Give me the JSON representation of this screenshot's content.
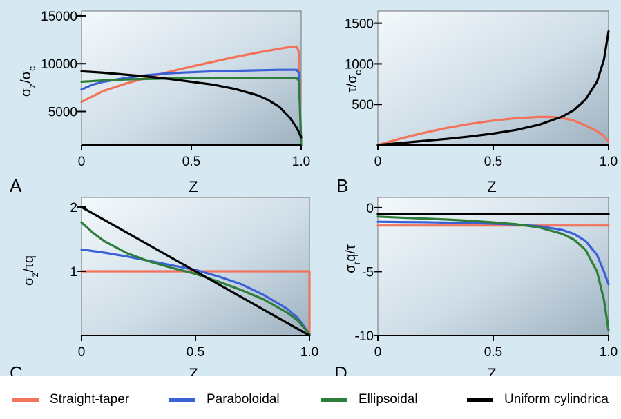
{
  "colors": {
    "straight_taper": "#f2735a",
    "paraboloidal": "#3a62d6",
    "ellipsoidal": "#2e7d3a",
    "uniform_cylindrical": "#000000"
  },
  "legend": [
    {
      "label": "Straight-taper",
      "color": "#f2735a"
    },
    {
      "label": "Paraboloidal",
      "color": "#3a62d6"
    },
    {
      "label": "Ellipsoidal",
      "color": "#2e7d3a"
    },
    {
      "label": "Uniform cylindrica",
      "color": "#000000"
    }
  ],
  "chart_data": [
    {
      "panel": "A",
      "type": "line",
      "xlabel": "Z",
      "ylabel": "σz/σc",
      "xlim": [
        0,
        1.0
      ],
      "ylim": [
        1500,
        15500
      ],
      "xticks": [
        0,
        0.5,
        1.0
      ],
      "xtick_labels": [
        "0",
        "0.5",
        "1.0"
      ],
      "yticks": [
        5000,
        10000,
        15000
      ],
      "ytick_labels": [
        "5000",
        "10000",
        "15000"
      ],
      "series": [
        {
          "name": "Straight-taper",
          "color": "#f2735a",
          "x": [
            0,
            0.1,
            0.2,
            0.3,
            0.4,
            0.5,
            0.6,
            0.7,
            0.8,
            0.9,
            0.95,
            0.98,
            0.99,
            1.0
          ],
          "y": [
            6000,
            7150,
            7900,
            8550,
            9150,
            9700,
            10200,
            10700,
            11150,
            11550,
            11750,
            11800,
            11200,
            1500
          ]
        },
        {
          "name": "Paraboloidal",
          "color": "#3a62d6",
          "x": [
            0,
            0.05,
            0.1,
            0.2,
            0.3,
            0.4,
            0.5,
            0.6,
            0.7,
            0.8,
            0.9,
            0.98,
            0.99,
            1.0
          ],
          "y": [
            7300,
            7800,
            8100,
            8500,
            8800,
            9000,
            9100,
            9200,
            9250,
            9300,
            9350,
            9350,
            9000,
            1500
          ]
        },
        {
          "name": "Ellipsoidal",
          "color": "#2e7d3a",
          "x": [
            0,
            0.1,
            0.2,
            0.3,
            0.4,
            0.5,
            0.6,
            0.7,
            0.8,
            0.9,
            0.98,
            0.99,
            1.0
          ],
          "y": [
            8100,
            8250,
            8350,
            8400,
            8450,
            8480,
            8500,
            8500,
            8500,
            8500,
            8500,
            8200,
            1500
          ]
        },
        {
          "name": "Uniform cylindrical",
          "color": "#000000",
          "x": [
            0,
            0.1,
            0.2,
            0.3,
            0.4,
            0.5,
            0.6,
            0.7,
            0.8,
            0.85,
            0.9,
            0.95,
            0.98,
            1.0
          ],
          "y": [
            9200,
            9050,
            8850,
            8650,
            8400,
            8100,
            7800,
            7350,
            6700,
            6200,
            5500,
            4300,
            3300,
            2300
          ]
        }
      ]
    },
    {
      "panel": "B",
      "type": "line",
      "xlabel": "Z",
      "ylabel": "τ/σc",
      "xlim": [
        0,
        1.0
      ],
      "ylim": [
        0,
        1650
      ],
      "xticks": [
        0,
        0.5,
        1.0
      ],
      "xtick_labels": [
        "0",
        "0.5",
        "1.0"
      ],
      "yticks": [
        500,
        1000,
        1500
      ],
      "ytick_labels": [
        "500",
        "1000",
        "1500"
      ],
      "series": [
        {
          "name": "Straight-taper",
          "color": "#f2735a",
          "x": [
            0,
            0.1,
            0.2,
            0.3,
            0.4,
            0.5,
            0.6,
            0.7,
            0.75,
            0.8,
            0.85,
            0.9,
            0.95,
            0.98,
            1.0
          ],
          "y": [
            0,
            80,
            150,
            210,
            260,
            300,
            330,
            345,
            345,
            330,
            300,
            240,
            170,
            110,
            40
          ]
        },
        {
          "name": "Uniform cylindrical",
          "color": "#000000",
          "x": [
            0,
            0.1,
            0.2,
            0.3,
            0.4,
            0.5,
            0.6,
            0.7,
            0.8,
            0.85,
            0.9,
            0.95,
            0.98,
            1.0
          ],
          "y": [
            0,
            25,
            50,
            75,
            105,
            140,
            185,
            250,
            350,
            430,
            560,
            780,
            1050,
            1400
          ]
        }
      ]
    },
    {
      "panel": "C",
      "type": "line",
      "xlabel": "Z",
      "ylabel": "σz/τq",
      "xlim": [
        0,
        1.0
      ],
      "ylim": [
        0,
        2.15
      ],
      "xticks": [
        0,
        0.5,
        1.0
      ],
      "xtick_labels": [
        "0",
        "0.5",
        "1.0"
      ],
      "yticks": [
        1,
        2
      ],
      "ytick_labels": [
        "1",
        "2"
      ],
      "series": [
        {
          "name": "Straight-taper",
          "color": "#f2735a",
          "x": [
            0,
            0.5,
            0.995,
            1.0,
            1.0
          ],
          "y": [
            1.0,
            1.0,
            1.0,
            1.0,
            0
          ]
        },
        {
          "name": "Paraboloidal",
          "color": "#3a62d6",
          "x": [
            0,
            0.1,
            0.2,
            0.3,
            0.4,
            0.5,
            0.6,
            0.7,
            0.8,
            0.9,
            0.95,
            1.0
          ],
          "y": [
            1.34,
            1.29,
            1.23,
            1.16,
            1.09,
            1.02,
            0.92,
            0.8,
            0.63,
            0.42,
            0.27,
            0.02
          ]
        },
        {
          "name": "Ellipsoidal",
          "color": "#2e7d3a",
          "x": [
            0,
            0.05,
            0.1,
            0.2,
            0.3,
            0.4,
            0.5,
            0.6,
            0.7,
            0.8,
            0.9,
            0.95,
            1.0
          ],
          "y": [
            1.76,
            1.6,
            1.47,
            1.28,
            1.15,
            1.05,
            0.96,
            0.84,
            0.71,
            0.56,
            0.36,
            0.23,
            0.02
          ]
        },
        {
          "name": "Uniform cylindrical",
          "color": "#000000",
          "x": [
            0,
            1.0
          ],
          "y": [
            2.0,
            0.0
          ]
        }
      ]
    },
    {
      "panel": "D",
      "type": "line",
      "xlabel": "Z",
      "ylabel": "σrq/τ",
      "xlim": [
        0,
        1.0
      ],
      "ylim": [
        -10,
        0.8
      ],
      "xticks": [
        0,
        0.5,
        1.0
      ],
      "xtick_labels": [
        "0",
        "0.5",
        "1.0"
      ],
      "yticks": [
        0,
        -5,
        -10
      ],
      "ytick_labels": [
        "0",
        "-5",
        "-10"
      ],
      "series": [
        {
          "name": "Straight-taper",
          "color": "#f2735a",
          "x": [
            0,
            0.5,
            1.0
          ],
          "y": [
            -1.4,
            -1.4,
            -1.4
          ]
        },
        {
          "name": "Paraboloidal",
          "color": "#3a62d6",
          "x": [
            0,
            0.1,
            0.2,
            0.3,
            0.4,
            0.5,
            0.6,
            0.7,
            0.8,
            0.85,
            0.9,
            0.95,
            0.98,
            1.0
          ],
          "y": [
            -1.1,
            -1.12,
            -1.14,
            -1.17,
            -1.2,
            -1.25,
            -1.32,
            -1.45,
            -1.75,
            -2.05,
            -2.6,
            -3.7,
            -5.0,
            -6.0
          ]
        },
        {
          "name": "Ellipsoidal",
          "color": "#2e7d3a",
          "x": [
            0,
            0.1,
            0.2,
            0.3,
            0.4,
            0.5,
            0.6,
            0.7,
            0.8,
            0.85,
            0.9,
            0.95,
            0.98,
            1.0
          ],
          "y": [
            -0.7,
            -0.78,
            -0.85,
            -0.93,
            -1.03,
            -1.15,
            -1.3,
            -1.55,
            -2.05,
            -2.5,
            -3.3,
            -5.0,
            -7.2,
            -9.6
          ]
        },
        {
          "name": "Uniform cylindrical",
          "color": "#000000",
          "x": [
            0,
            1.0
          ],
          "y": [
            -0.5,
            -0.5
          ]
        }
      ]
    }
  ]
}
